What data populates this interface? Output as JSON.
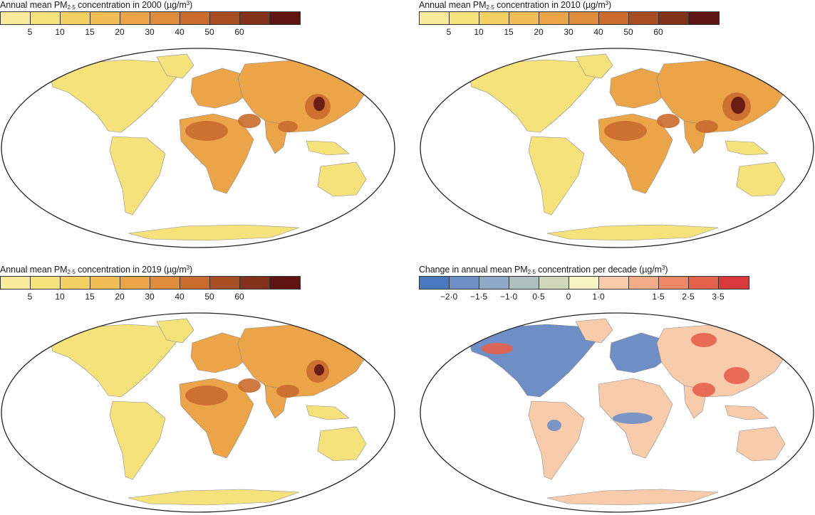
{
  "panels": [
    {
      "id": "pm-2000",
      "title_prefix": "Annual mean PM",
      "title_sub": "2·5",
      "title_suffix": " concentration in 2000 (µg/m",
      "title_sup": "3",
      "title_end": ")",
      "legend_colors": [
        "#f8ec9a",
        "#f6e27a",
        "#f4d062",
        "#f2bd54",
        "#eba447",
        "#e08d3b",
        "#c96c2c",
        "#a94e22",
        "#82321a",
        "#5e1413"
      ],
      "tick_labels": [
        "5",
        "10",
        "15",
        "20",
        "30",
        "40",
        "50",
        "60"
      ]
    },
    {
      "id": "pm-2010",
      "title_prefix": "Annual mean PM",
      "title_sub": "2·5",
      "title_suffix": " concentration in 2010 (µg/m",
      "title_sup": "3",
      "title_end": ")",
      "legend_colors": [
        "#f8ec9a",
        "#f6e27a",
        "#f4d062",
        "#f2bd54",
        "#eba447",
        "#e08d3b",
        "#c96c2c",
        "#a94e22",
        "#82321a",
        "#5e1413"
      ],
      "tick_labels": [
        "5",
        "10",
        "15",
        "20",
        "30",
        "40",
        "50",
        "60"
      ]
    },
    {
      "id": "pm-2019",
      "title_prefix": "Annual mean PM",
      "title_sub": "2·5",
      "title_suffix": " concentration in 2019 (µg/m",
      "title_sup": "3",
      "title_end": ")",
      "legend_colors": [
        "#f8ec9a",
        "#f6e27a",
        "#f4d062",
        "#f2bd54",
        "#eba447",
        "#e08d3b",
        "#c96c2c",
        "#a94e22",
        "#82321a",
        "#5e1413"
      ],
      "tick_labels": [
        "5",
        "10",
        "15",
        "20",
        "30",
        "40",
        "50",
        "60"
      ]
    },
    {
      "id": "pm-change",
      "title_prefix": "Change in annual mean PM",
      "title_sub": "2·5",
      "title_suffix": " concentration per decade (µg/m",
      "title_sup": "3",
      "title_end": ")",
      "legend_colors": [
        "#4a78bf",
        "#6d8fc6",
        "#8ea9c8",
        "#aebfc0",
        "#cfd9b9",
        "#f7f3c3",
        "#f8ccaa",
        "#f4ab87",
        "#ee8866",
        "#e6614b",
        "#d8393a"
      ],
      "tick_labels": [
        "−2·0",
        "−1·5",
        "−1·0",
        "0·5",
        "0",
        "1·0",
        "1·5",
        "2·5",
        "3·5"
      ]
    }
  ],
  "palette": {
    "ocean": "#ffffff",
    "outline": "#222222",
    "land_low": "#f6e27a",
    "land_mid": "#eba447",
    "land_high": "#c96c2c",
    "land_peak": "#5e1413",
    "change_neutral": "#f8ccaa",
    "change_decrease": "#6d8fc6",
    "change_increase": "#e6614b"
  }
}
